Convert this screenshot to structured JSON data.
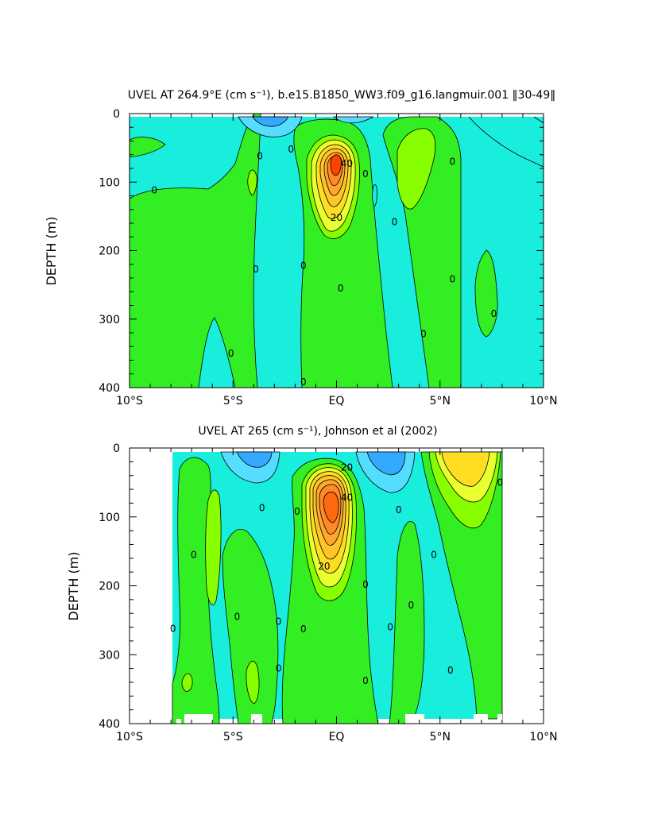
{
  "chart_data": [
    {
      "type": "contour",
      "title": "UVEL AT 264.9°E (cm s⁻¹), b.e15.B1850_WW3.f09_g16.langmuir.001 ‖30-49‖",
      "xlabel": "",
      "ylabel": "DEPTH (m)",
      "x_tick_labels": [
        "10°S",
        "5°S",
        "EQ",
        "5°N",
        "10°N"
      ],
      "x_tick_values": [
        -10,
        -5,
        0,
        5,
        10
      ],
      "y_tick_labels": [
        "0",
        "100",
        "200",
        "300",
        "400"
      ],
      "y_tick_values": [
        0,
        100,
        200,
        300,
        400
      ],
      "xlim": [
        -10,
        10
      ],
      "ylim": [
        400,
        0
      ],
      "data_extent": {
        "lat": [
          -10,
          10
        ],
        "depth": [
          10,
          400
        ]
      },
      "contour_labels": [
        {
          "text": "0",
          "lat": -8.8,
          "depth": 112
        },
        {
          "text": "0",
          "lat": -5.1,
          "depth": 350
        },
        {
          "text": "0",
          "lat": -3.9,
          "depth": 227
        },
        {
          "text": "0",
          "lat": -3.7,
          "depth": 62
        },
        {
          "text": "0",
          "lat": -2.2,
          "depth": 52
        },
        {
          "text": "0",
          "lat": -1.6,
          "depth": 222
        },
        {
          "text": "0",
          "lat": -1.6,
          "depth": 392
        },
        {
          "text": "40",
          "lat": 0.5,
          "depth": 73
        },
        {
          "text": "20",
          "lat": 0.0,
          "depth": 152
        },
        {
          "text": "0",
          "lat": 0.2,
          "depth": 255
        },
        {
          "text": "0",
          "lat": 1.4,
          "depth": 88
        },
        {
          "text": "0",
          "lat": 2.8,
          "depth": 158
        },
        {
          "text": "0",
          "lat": 4.2,
          "depth": 322
        },
        {
          "text": "0",
          "lat": 5.6,
          "depth": 70
        },
        {
          "text": "0",
          "lat": 5.6,
          "depth": 242
        },
        {
          "text": "0",
          "lat": 7.6,
          "depth": 292
        }
      ],
      "colors": {
        "neg3": "#33aaff",
        "neg2": "#55ddff",
        "neg1": "#19eedd",
        "pos1": "#33ee22",
        "pos2": "#88ff00",
        "pos3": "#e8ff30",
        "pos4": "#ffdd22",
        "pos5": "#ffc428",
        "pos6": "#ffa830",
        "pos7": "#ff8a28",
        "pos8": "#ff6a10",
        "pos9": "#ff4400"
      }
    },
    {
      "type": "contour",
      "title": "UVEL AT 265 (cm s⁻¹), Johnson et al (2002)",
      "xlabel": "",
      "ylabel": "DEPTH (m)",
      "x_tick_labels": [
        "10°S",
        "5°S",
        "EQ",
        "5°N",
        "10°N"
      ],
      "x_tick_values": [
        -10,
        -5,
        0,
        5,
        10
      ],
      "y_tick_labels": [
        "0",
        "100",
        "200",
        "300",
        "400"
      ],
      "y_tick_values": [
        0,
        100,
        200,
        300,
        400
      ],
      "xlim": [
        -10,
        10
      ],
      "ylim": [
        400,
        0
      ],
      "data_extent": {
        "lat": [
          -8,
          8
        ],
        "depth": [
          5,
          400
        ]
      },
      "contour_labels": [
        {
          "text": "0",
          "lat": -7.9,
          "depth": 262
        },
        {
          "text": "0",
          "lat": -6.9,
          "depth": 155
        },
        {
          "text": "0",
          "lat": -4.8,
          "depth": 245
        },
        {
          "text": "0",
          "lat": -3.6,
          "depth": 87
        },
        {
          "text": "0",
          "lat": -2.8,
          "depth": 252
        },
        {
          "text": "0",
          "lat": -2.8,
          "depth": 320
        },
        {
          "text": "0",
          "lat": -1.9,
          "depth": 92
        },
        {
          "text": "0",
          "lat": -1.6,
          "depth": 263
        },
        {
          "text": "20",
          "lat": 0.5,
          "depth": 28
        },
        {
          "text": "40",
          "lat": 0.5,
          "depth": 72
        },
        {
          "text": "20",
          "lat": -0.6,
          "depth": 172
        },
        {
          "text": "0",
          "lat": 1.4,
          "depth": 198
        },
        {
          "text": "0",
          "lat": 1.4,
          "depth": 338
        },
        {
          "text": "0",
          "lat": 2.6,
          "depth": 260
        },
        {
          "text": "0",
          "lat": 3.0,
          "depth": 90
        },
        {
          "text": "0",
          "lat": 3.6,
          "depth": 228
        },
        {
          "text": "0",
          "lat": 4.7,
          "depth": 155
        },
        {
          "text": "0",
          "lat": 5.5,
          "depth": 323
        },
        {
          "text": "0",
          "lat": 7.9,
          "depth": 50
        }
      ],
      "colors": {
        "neg3": "#33aaff",
        "neg2": "#55ddff",
        "neg1": "#19eedd",
        "pos1": "#33ee22",
        "pos2": "#88ff00",
        "pos3": "#e8ff30",
        "pos4": "#ffdd22",
        "pos5": "#ffc428",
        "pos6": "#ffa830",
        "pos7": "#ff8a28",
        "pos8": "#ff6a10",
        "pos9": "#ff4400"
      }
    }
  ]
}
